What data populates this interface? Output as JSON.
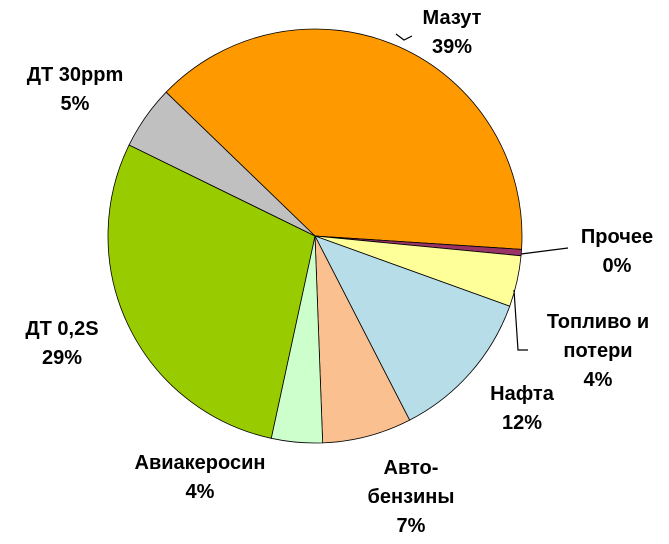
{
  "chart_data": {
    "type": "pie",
    "categories": [
      "Мазут",
      "Прочее",
      "Топливо и потери",
      "Нафта",
      "Авто-бензины",
      "Авиакеросин",
      "ДТ 0,2S",
      "ДТ 30ppm"
    ],
    "values": [
      39,
      0.5,
      4,
      12,
      7,
      4,
      29,
      5
    ],
    "value_labels": [
      "39%",
      "0%",
      "4%",
      "12%",
      "7%",
      "4%",
      "29%",
      "5%"
    ],
    "colors": [
      "#ff9900",
      "#993366",
      "#ffff99",
      "#b7dde8",
      "#fac090",
      "#ccffcc",
      "#99cc00",
      "#c0c0c0"
    ]
  }
}
